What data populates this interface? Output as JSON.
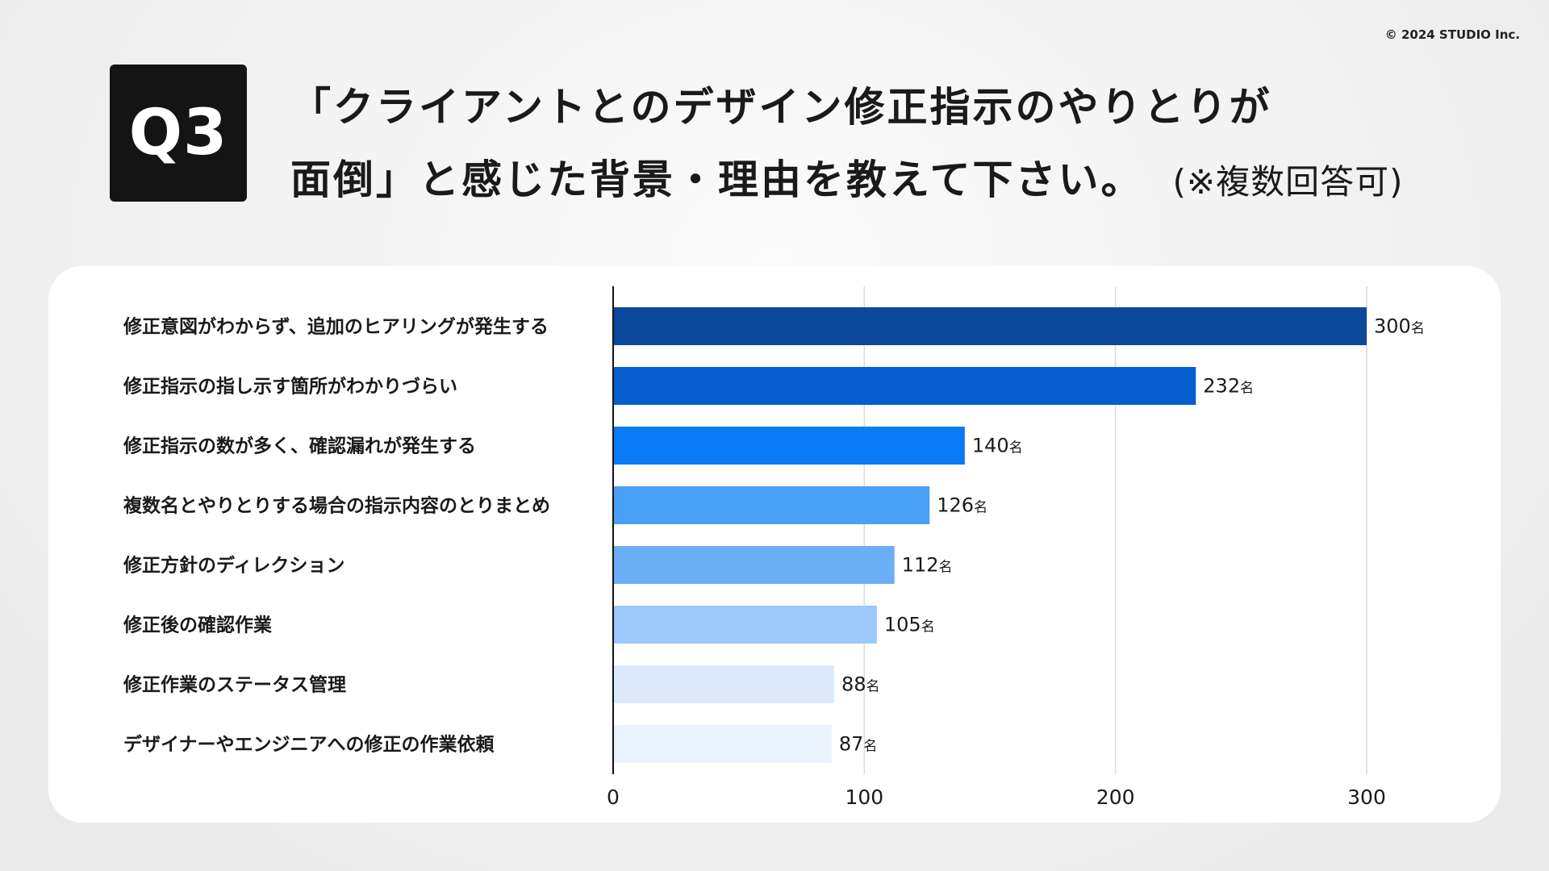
{
  "copyright": "© 2024 STUDIO Inc.",
  "question": {
    "badge": "Q3",
    "title_line1": "「クライアントとのデザイン修正指示のやりとりが",
    "title_line2": "面倒」と感じた背景・理由を教えて下さい。",
    "note": "(※複数回答可)"
  },
  "chart_data": {
    "type": "bar",
    "orientation": "horizontal",
    "categories": [
      "修正意図がわからず、追加のヒアリングが発生する",
      "修正指示の指し示す箇所がわかりづらい",
      "修正指示の数が多く、確認漏れが発生する",
      "複数名とやりとりする場合の指示内容のとりまとめ",
      "修正方針のディレクション",
      "修正後の確認作業",
      "修正作業のステータス管理",
      "デザイナーやエンジニアへの修正の作業依頼"
    ],
    "values": [
      300,
      232,
      140,
      126,
      112,
      105,
      88,
      87
    ],
    "value_unit": "名",
    "colors": [
      "#0b4a9b",
      "#075fcf",
      "#0a7af5",
      "#4a9ff7",
      "#6aaef8",
      "#9cc9fa",
      "#ddeafc",
      "#e9f2fd"
    ],
    "xlim": [
      0,
      300
    ],
    "xticks": [
      0,
      100,
      200,
      300
    ],
    "grid": true,
    "title": "",
    "xlabel": "",
    "ylabel": ""
  }
}
